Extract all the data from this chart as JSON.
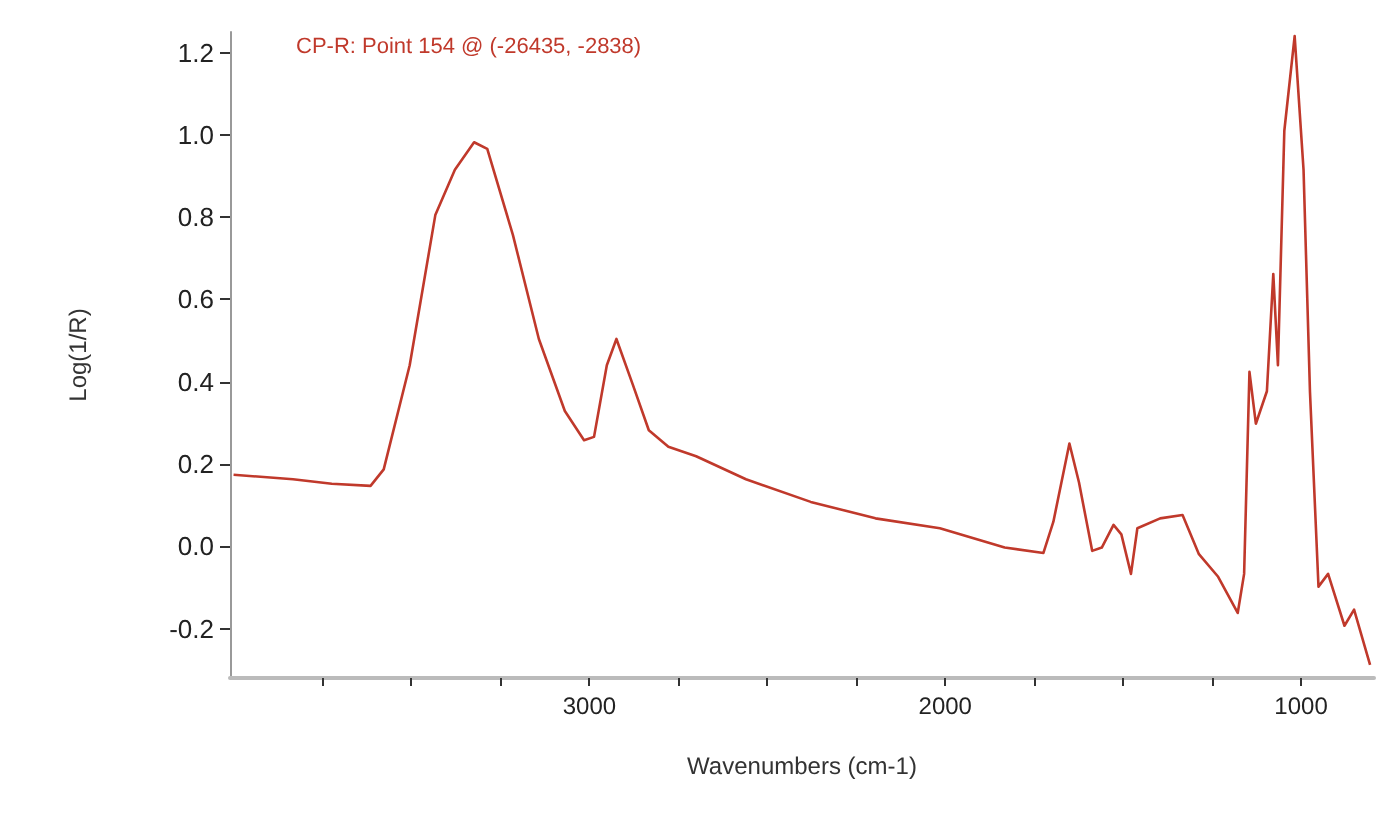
{
  "chart_data": {
    "type": "line",
    "xlabel": "Wavenumbers (cm-1)",
    "ylabel": "Log(1/R)",
    "annotations": [
      "CP-R: Point 154 @ (-26435, -2838)"
    ],
    "xlim": [
      4010,
      795
    ],
    "ylim": [
      -0.32,
      1.25
    ],
    "xticks": [
      {
        "value": 3750,
        "label": null
      },
      {
        "value": 3500,
        "label": null
      },
      {
        "value": 3250,
        "label": null
      },
      3000,
      {
        "value": 2750,
        "label": null
      },
      {
        "value": 2500,
        "label": null
      },
      {
        "value": 2250,
        "label": null
      },
      2000,
      {
        "value": 1750,
        "label": null
      },
      {
        "value": 1500,
        "label": null
      },
      {
        "value": 1250,
        "label": null
      },
      1000
    ],
    "yticks": [
      -0.2,
      {
        "value": 0,
        "label": "0.0"
      },
      0.2,
      0.4,
      0.6,
      0.8,
      {
        "value": 1,
        "label": "1.0"
      },
      1.2
    ],
    "grid": false,
    "marker": "none",
    "line_style": "solid",
    "series": [
      {
        "color": "#c0392b",
        "x": [
          4000,
          3833,
          3724,
          3615,
          3578,
          3505,
          3433,
          3378,
          3324,
          3287,
          3215,
          3142,
          3069,
          3015,
          2987,
          2951,
          2924,
          2878,
          2833,
          2778,
          2700,
          2560,
          2378,
          2196,
          2015,
          1833,
          1724,
          1696,
          1651,
          1624,
          1587,
          1560,
          1527,
          1505,
          1478,
          1460,
          1396,
          1333,
          1287,
          1233,
          1178,
          1160,
          1145,
          1127,
          1096,
          1078,
          1065,
          1047,
          1018,
          993,
          975,
          951,
          924,
          878,
          851,
          806
        ],
        "values": [
          0.174,
          0.163,
          0.152,
          0.147,
          0.187,
          0.44,
          0.805,
          0.915,
          0.982,
          0.966,
          0.757,
          0.504,
          0.329,
          0.258,
          0.266,
          0.44,
          0.504,
          0.393,
          0.282,
          0.242,
          0.219,
          0.163,
          0.108,
          0.068,
          0.044,
          -0.003,
          -0.016,
          0.06,
          0.25,
          0.155,
          -0.011,
          -0.003,
          0.052,
          0.029,
          -0.067,
          0.044,
          0.068,
          0.076,
          -0.019,
          -0.074,
          -0.162,
          -0.067,
          0.424,
          0.298,
          0.377,
          0.662,
          0.44,
          1.01,
          1.24,
          0.915,
          0.377,
          -0.098,
          -0.067,
          -0.193,
          -0.154,
          -0.288
        ]
      }
    ]
  }
}
